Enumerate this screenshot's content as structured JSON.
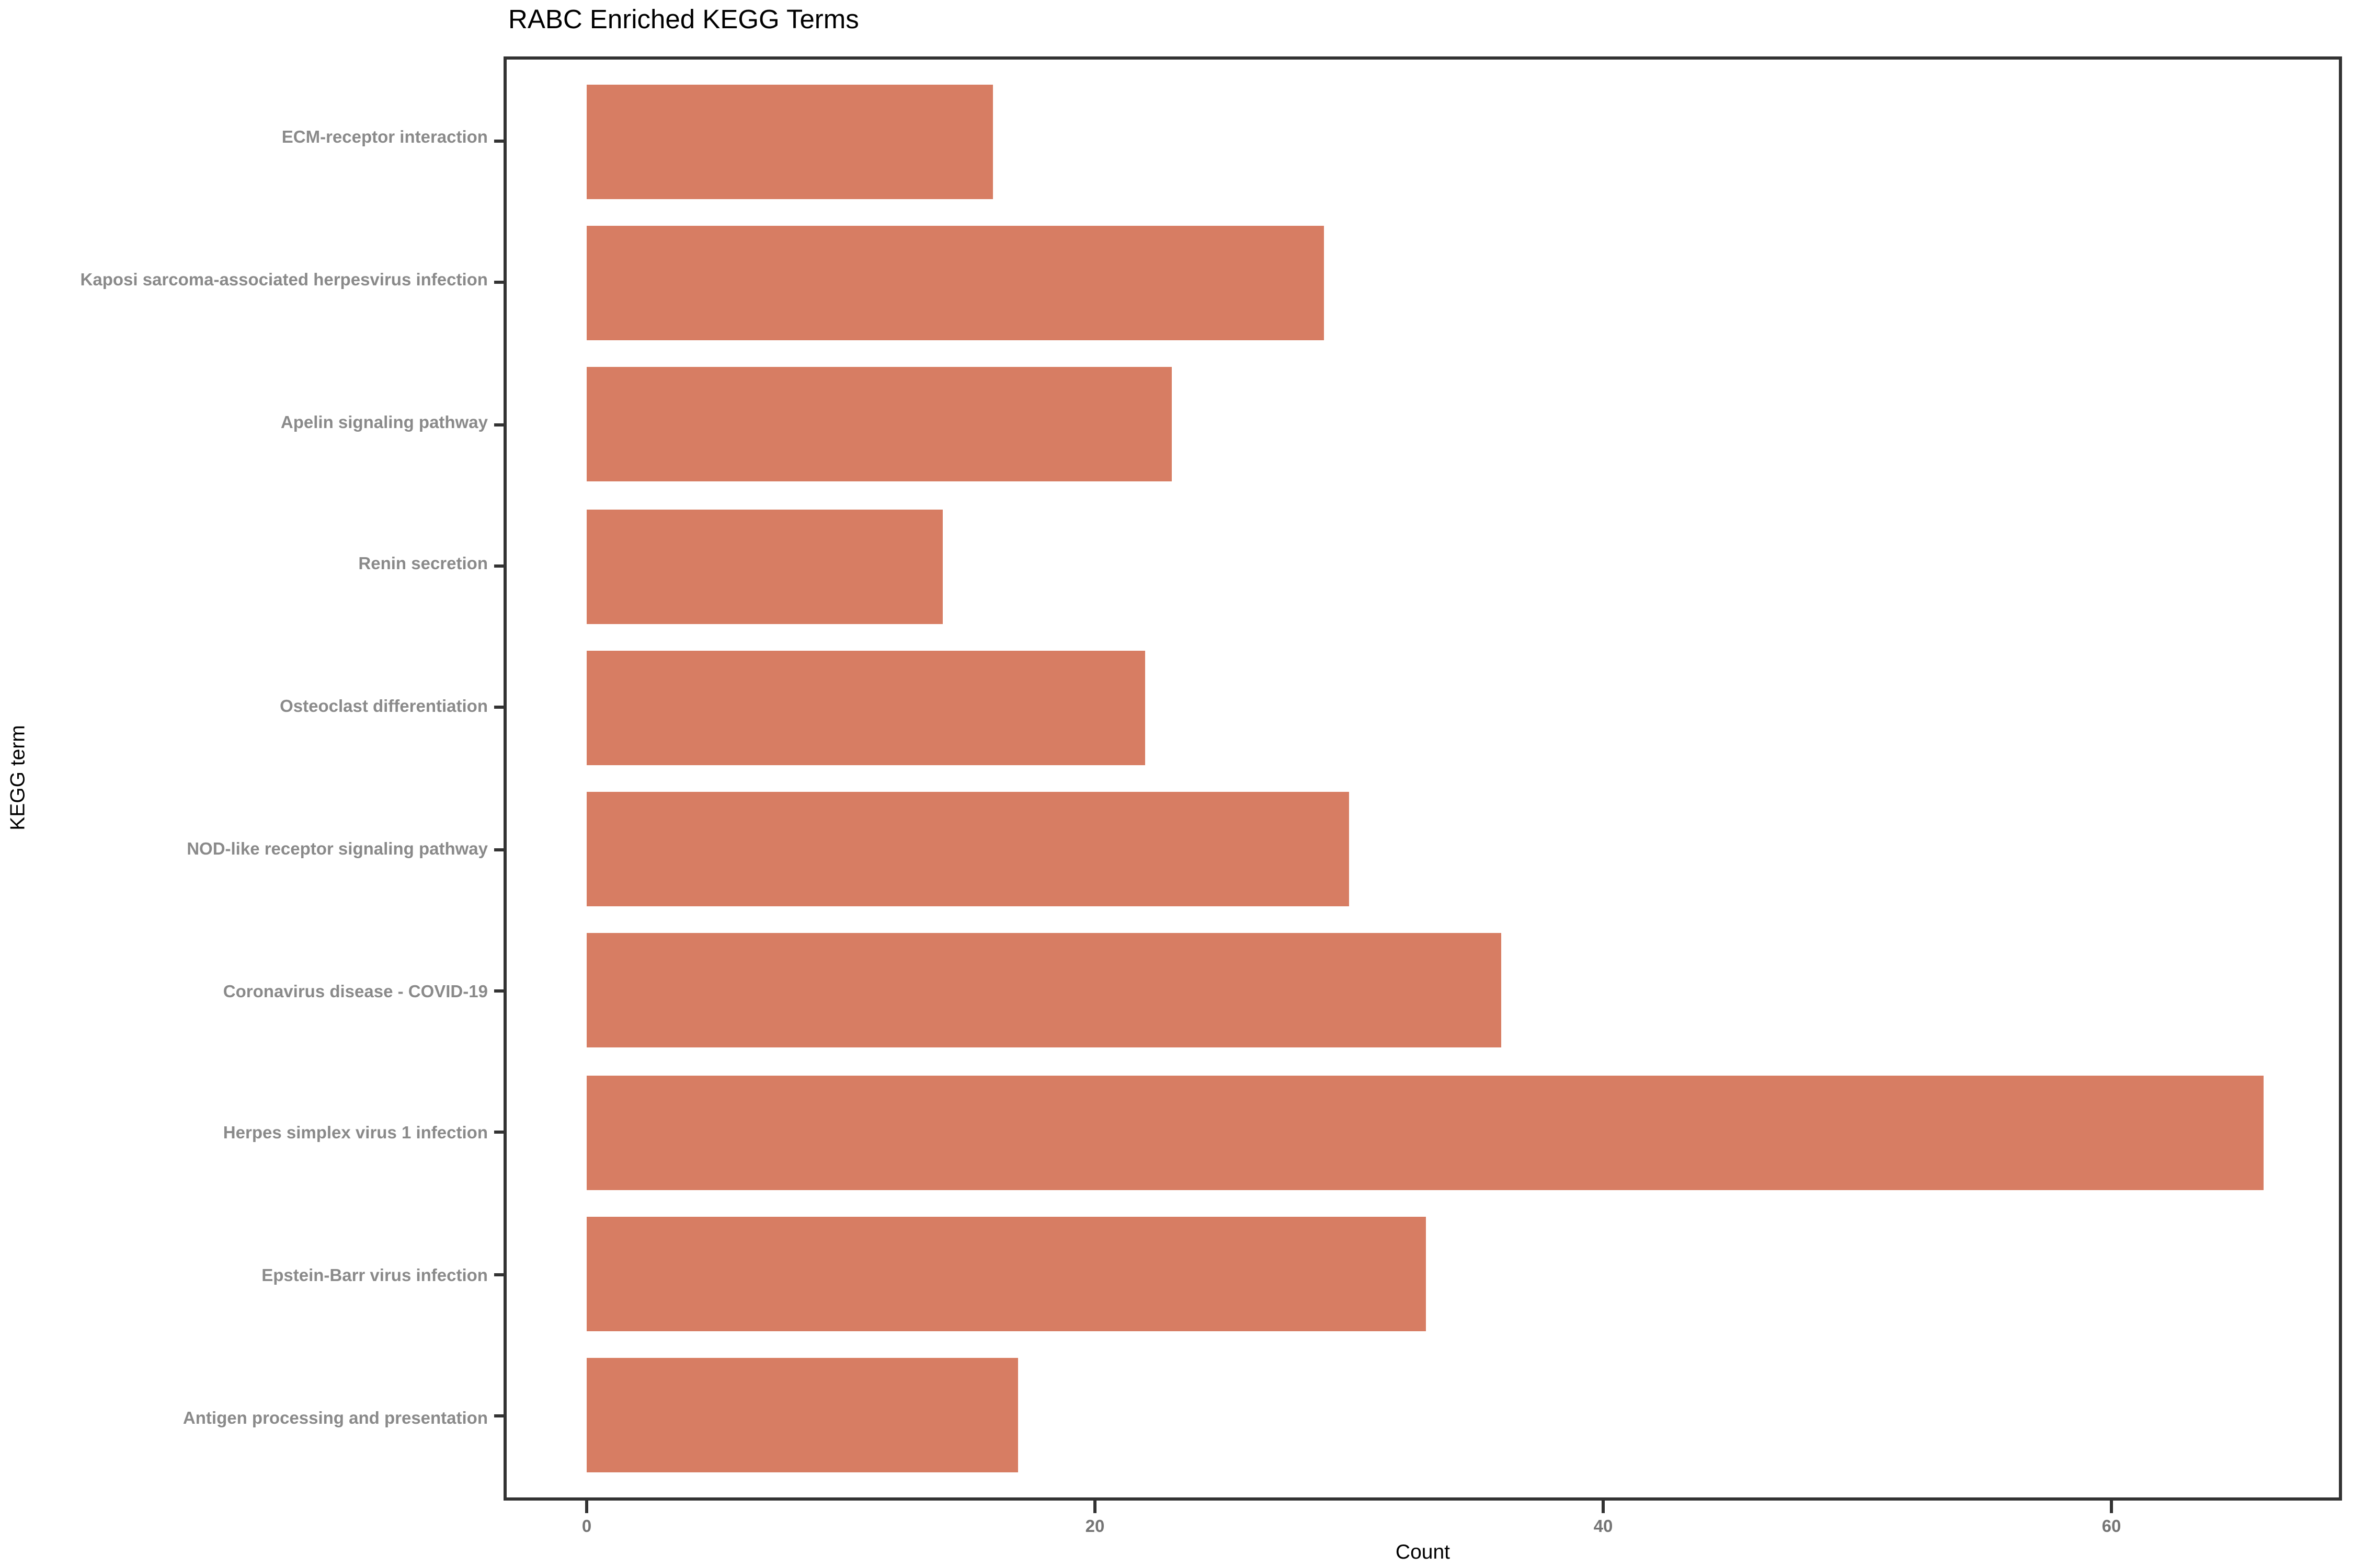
{
  "title": "RABC Enriched KEGG Terms",
  "colors": {
    "bar_fill": "#D77D63",
    "category_text": "#8a8a8a",
    "tick_text": "#757575",
    "axis_line": "#333333",
    "title_text": "#000000"
  },
  "chart_data": {
    "type": "bar",
    "orientation": "horizontal",
    "title": "RABC Enriched KEGG Terms",
    "xlabel": "Count",
    "ylabel": "KEGG term",
    "categories": [
      "ECM-receptor interaction",
      "Kaposi sarcoma-associated herpesvirus infection",
      "Apelin signaling pathway",
      "Renin secretion",
      "Osteoclast differentiation",
      "NOD-like receptor signaling pathway",
      "Coronavirus disease - COVID-19",
      "Herpes simplex virus 1 infection",
      "Epstein-Barr virus infection",
      "Antigen processing and presentation"
    ],
    "values": [
      16,
      29,
      23,
      14,
      22,
      30,
      36,
      66,
      33,
      17
    ],
    "x_ticks": [
      0,
      20,
      40,
      60
    ],
    "xlim": [
      0,
      69
    ],
    "grid": false,
    "legend": false
  }
}
